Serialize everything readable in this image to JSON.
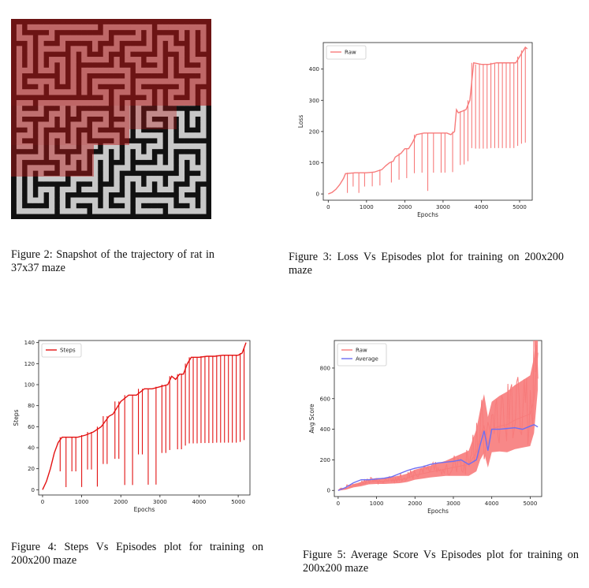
{
  "figures": {
    "fig2": {
      "caption": "Figure 2: Snapshot of the trajectory of rat in 37x37 maze"
    },
    "fig3": {
      "caption": "Figure 3: Loss Vs Episodes plot for training on 200x200 maze"
    },
    "fig4": {
      "caption": "Figure 4: Steps Vs Episodes plot for training on 200x200 maze"
    },
    "fig5": {
      "caption": "Figure 5: Average Score Vs Episodes plot for training on 200x200 maze"
    }
  },
  "colors": {
    "raw": "#f77b7b",
    "steps": "#e31212",
    "average": "#6e6ef2",
    "maze_wall": "#111111",
    "maze_path": "#c8c8c8",
    "trail": "#b81818"
  },
  "chart_data": [
    {
      "id": "loss",
      "type": "line",
      "title": "",
      "xlabel": "Epochs",
      "ylabel": "Loss",
      "xlim": [
        -130,
        5330
      ],
      "ylim": [
        -20,
        485
      ],
      "xticks": [
        0,
        1000,
        2000,
        3000,
        4000,
        5000
      ],
      "yticks": [
        0,
        100,
        200,
        300,
        400
      ],
      "legend": "top-left",
      "series": [
        {
          "name": "Raw",
          "color": "#f77b7b",
          "x": [
            0,
            100,
            200,
            300,
            400,
            450,
            700,
            1000,
            1200,
            1400,
            1500,
            1600,
            1700,
            1750,
            1900,
            2000,
            2100,
            2200,
            2300,
            2500,
            2700,
            2900,
            3100,
            3200,
            3300,
            3350,
            3400,
            3500,
            3600,
            3700,
            3800,
            4000,
            4200,
            4400,
            4600,
            4800,
            4900,
            5000,
            5100,
            5150,
            5200
          ],
          "y": [
            0,
            5,
            15,
            30,
            50,
            65,
            68,
            68,
            70,
            78,
            90,
            100,
            105,
            118,
            130,
            145,
            145,
            165,
            190,
            195,
            195,
            195,
            195,
            190,
            200,
            270,
            260,
            265,
            270,
            300,
            420,
            415,
            415,
            420,
            420,
            420,
            420,
            440,
            460,
            470,
            465
          ],
          "spikes_down": [
            500,
            650,
            800,
            950,
            1150,
            1350,
            1650,
            1850,
            2050,
            2250,
            2450,
            2600,
            2750,
            2950,
            3050,
            3250,
            3450,
            3550,
            3650,
            3750,
            3850,
            3950,
            4050,
            4150,
            4250,
            4350,
            4450,
            4550,
            4650,
            4750,
            4850,
            4950,
            5050,
            5150
          ]
        }
      ]
    },
    {
      "id": "steps",
      "type": "line",
      "title": "",
      "xlabel": "Epochs",
      "ylabel": "Steps",
      "xlim": [
        -100,
        5300
      ],
      "ylim": [
        -5,
        142
      ],
      "xticks": [
        0,
        1000,
        2000,
        3000,
        4000,
        5000
      ],
      "yticks": [
        0,
        20,
        40,
        60,
        80,
        100,
        120,
        140
      ],
      "legend": "top-left",
      "series": [
        {
          "name": "Steps",
          "color": "#e31212",
          "x": [
            0,
            100,
            200,
            300,
            400,
            500,
            700,
            900,
            1100,
            1300,
            1500,
            1700,
            1800,
            2000,
            2200,
            2400,
            2600,
            2800,
            3000,
            3200,
            3300,
            3400,
            3500,
            3600,
            3700,
            3800,
            4000,
            4200,
            4400,
            4600,
            4800,
            5000,
            5100,
            5150,
            5200
          ],
          "y": [
            0,
            8,
            20,
            35,
            45,
            50,
            50,
            50,
            52,
            55,
            60,
            70,
            72,
            84,
            90,
            90,
            96,
            96,
            98,
            100,
            108,
            105,
            110,
            110,
            120,
            126,
            126,
            127,
            127,
            128,
            128,
            128,
            130,
            135,
            140
          ],
          "spikes_down": [
            450,
            600,
            750,
            850,
            1000,
            1150,
            1250,
            1400,
            1550,
            1650,
            1850,
            1950,
            2100,
            2300,
            2450,
            2550,
            2700,
            2900,
            3050,
            3150,
            3250,
            3450,
            3550,
            3650,
            3750,
            3850,
            3950,
            4050,
            4150,
            4250,
            4350,
            4450,
            4550,
            4650,
            4750,
            4850,
            4950,
            5050,
            5150
          ]
        }
      ]
    },
    {
      "id": "score",
      "type": "line",
      "title": "",
      "xlabel": "Epochs",
      "ylabel": "Avg Score",
      "xlim": [
        -100,
        5300
      ],
      "ylim": [
        -40,
        980
      ],
      "xticks": [
        0,
        1000,
        2000,
        3000,
        4000,
        5000
      ],
      "yticks": [
        0,
        200,
        400,
        600,
        800
      ],
      "legend": "top-left",
      "series": [
        {
          "name": "Raw",
          "color": "#f77b7b",
          "x": [
            0,
            200,
            400,
            600,
            800,
            1000,
            1200,
            1400,
            1600,
            1800,
            2000,
            2200,
            2400,
            2600,
            2800,
            3000,
            3200,
            3400,
            3600,
            3700,
            3800,
            3900,
            4000,
            4200,
            4400,
            4600,
            4800,
            5000,
            5100,
            5200
          ],
          "y": [
            0,
            10,
            30,
            40,
            55,
            60,
            60,
            65,
            70,
            80,
            100,
            110,
            120,
            130,
            140,
            150,
            160,
            170,
            250,
            350,
            420,
            300,
            400,
            420,
            430,
            460,
            480,
            500,
            600,
            900
          ],
          "spread": [
            0,
            10,
            20,
            25,
            30,
            35,
            35,
            40,
            45,
            50,
            60,
            65,
            70,
            80,
            90,
            110,
            130,
            150,
            250,
            300,
            350,
            300,
            300,
            330,
            360,
            380,
            400,
            420,
            450,
            480
          ]
        },
        {
          "name": "Average",
          "color": "#6e6ef2",
          "x": [
            0,
            200,
            400,
            600,
            800,
            1000,
            1200,
            1400,
            1600,
            1800,
            2000,
            2200,
            2400,
            2600,
            2800,
            3000,
            3200,
            3400,
            3600,
            3700,
            3800,
            3900,
            4000,
            4200,
            4400,
            4600,
            4800,
            5000,
            5100,
            5200
          ],
          "y": [
            0,
            20,
            50,
            70,
            70,
            75,
            80,
            90,
            110,
            130,
            145,
            155,
            170,
            180,
            185,
            190,
            200,
            170,
            200,
            300,
            390,
            260,
            400,
            400,
            405,
            410,
            400,
            420,
            430,
            415
          ]
        }
      ]
    }
  ]
}
